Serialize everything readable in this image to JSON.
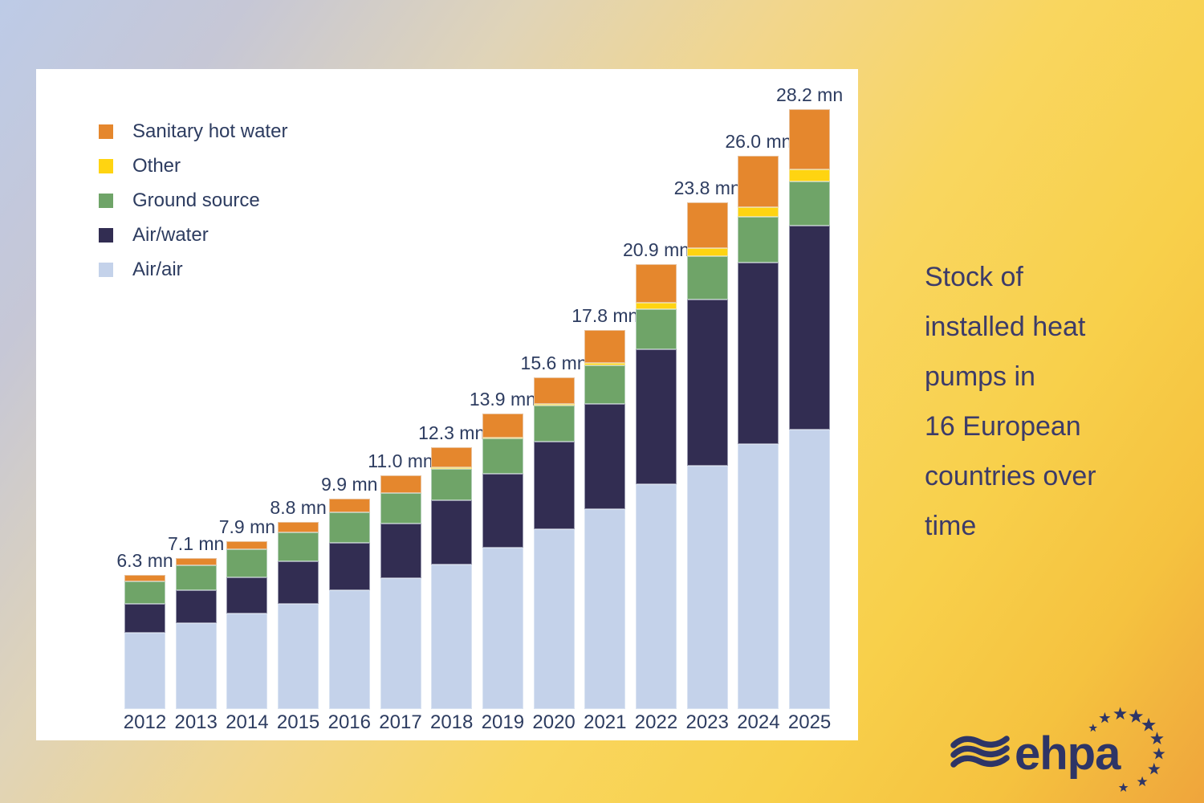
{
  "page": {
    "background": {
      "top_left": "#bdcbe7",
      "middle_beige": "#e0d4b8",
      "yellow": "#f8d04b",
      "bottom_right_orange": "#efa53c"
    },
    "card_background": "#ffffff"
  },
  "title_panel": {
    "text": "Stock of installed heat pumps in 16 European countries over time",
    "lines": [
      "Stock of",
      "installed heat",
      "pumps in",
      "16 European",
      "countries over",
      "time"
    ],
    "color": "#3c3b69"
  },
  "logo": {
    "text": "ehpa",
    "color": "#2e3566",
    "icons": [
      "waves-icon",
      "eu-stars-arc-icon"
    ]
  },
  "chart_data": {
    "type": "bar",
    "stacked": true,
    "title": "",
    "xlabel": "",
    "ylabel": "",
    "unit": "mn",
    "grid": false,
    "y_axis_visible": false,
    "ylim": [
      0,
      30
    ],
    "legend_position": "top-left",
    "legend_order_top_to_bottom": [
      "Sanitary hot water",
      "Other",
      "Ground source",
      "Air/water",
      "Air/air"
    ],
    "categories": [
      "2012",
      "2013",
      "2014",
      "2015",
      "2016",
      "2017",
      "2018",
      "2019",
      "2020",
      "2021",
      "2022",
      "2023",
      "2024",
      "2025"
    ],
    "series": [
      {
        "name": "Air/air",
        "color": "#c4d2ea",
        "values": [
          3.6,
          4.05,
          4.5,
          4.95,
          5.6,
          6.15,
          6.8,
          7.6,
          8.45,
          9.4,
          10.55,
          11.45,
          12.45,
          13.15
        ]
      },
      {
        "name": "Air/water",
        "color": "#322d52",
        "values": [
          1.35,
          1.55,
          1.7,
          2.0,
          2.2,
          2.55,
          3.0,
          3.45,
          4.1,
          4.95,
          6.35,
          7.8,
          8.55,
          9.55
        ]
      },
      {
        "name": "Ground source",
        "color": "#6fa468",
        "values": [
          1.05,
          1.15,
          1.3,
          1.35,
          1.45,
          1.45,
          1.5,
          1.65,
          1.7,
          1.8,
          1.9,
          2.05,
          2.15,
          2.1
        ]
      },
      {
        "name": "Other",
        "color": "#ffd411",
        "values": [
          0,
          0,
          0,
          0,
          0,
          0,
          0.05,
          0.05,
          0.1,
          0.1,
          0.3,
          0.35,
          0.45,
          0.55
        ]
      },
      {
        "name": "Sanitary hot water",
        "color": "#e5872d",
        "values": [
          0.3,
          0.35,
          0.4,
          0.5,
          0.65,
          0.85,
          0.95,
          1.15,
          1.25,
          1.55,
          1.8,
          2.15,
          2.4,
          2.85
        ]
      }
    ],
    "totals": [
      6.3,
      7.1,
      7.9,
      8.8,
      9.9,
      11.0,
      12.3,
      13.9,
      15.6,
      17.8,
      20.9,
      23.8,
      26.0,
      28.2
    ],
    "total_labels": [
      "6.3 mn",
      "7.1 mn",
      "7.9 mn",
      "8.8 mn",
      "9.9 mn",
      "11.0 mn",
      "12.3 mn",
      "13.9 mn",
      "15.6 mn",
      "17.8 mn",
      "20.9 mn",
      "23.8 mn",
      "26.0 mn",
      "28.2 mn"
    ],
    "text_color": "#2d3c60"
  }
}
